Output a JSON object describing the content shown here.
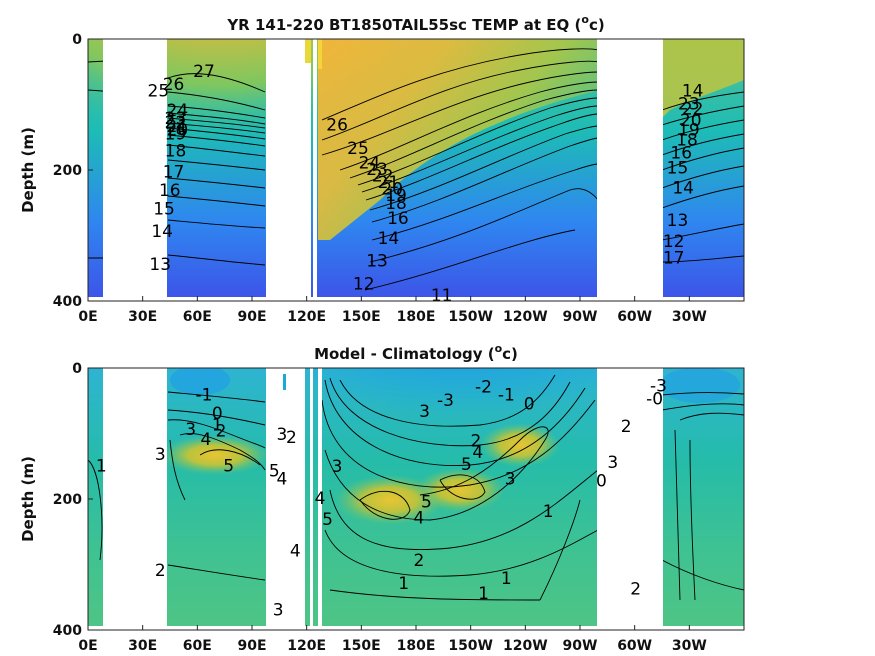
{
  "chart_data": [
    {
      "type": "heatmap",
      "title_main": "YR 141-220 BT1850TAIL55sc TEMP at EQ (",
      "title_unit": "o",
      "title_tail": "c)",
      "ylabel": "Depth (m)",
      "xlabel": "",
      "x_ticks": [
        "0E",
        "30E",
        "60E",
        "90E",
        "120E",
        "150E",
        "180E",
        "150W",
        "120W",
        "90W",
        "60W",
        "30W"
      ],
      "y_ticks": [
        "0",
        "200",
        "400"
      ],
      "xlim": [
        0,
        345
      ],
      "ylim": [
        400,
        0
      ],
      "contour_labels": [
        {
          "text": "27",
          "x": 61,
          "y": 50
        },
        {
          "text": "26",
          "x": 45,
          "y": 70
        },
        {
          "text": "25",
          "x": 37,
          "y": 80
        },
        {
          "text": "24",
          "x": 47,
          "y": 110
        },
        {
          "text": "23",
          "x": 46,
          "y": 122
        },
        {
          "text": "22",
          "x": 46,
          "y": 128
        },
        {
          "text": "21",
          "x": 47,
          "y": 134
        },
        {
          "text": "20",
          "x": 47,
          "y": 140
        },
        {
          "text": "19",
          "x": 46,
          "y": 146
        },
        {
          "text": "18",
          "x": 46,
          "y": 172
        },
        {
          "text": "17",
          "x": 45,
          "y": 204
        },
        {
          "text": "16",
          "x": 43,
          "y": 232
        },
        {
          "text": "15",
          "x": 40,
          "y": 260
        },
        {
          "text": "14",
          "x": 39,
          "y": 295
        },
        {
          "text": "13",
          "x": 38,
          "y": 345
        },
        {
          "text": "26",
          "x": 131,
          "y": 132
        },
        {
          "text": "25",
          "x": 142,
          "y": 168
        },
        {
          "text": "24",
          "x": 148,
          "y": 190
        },
        {
          "text": "23",
          "x": 152,
          "y": 200
        },
        {
          "text": "22",
          "x": 155,
          "y": 210
        },
        {
          "text": "21",
          "x": 158,
          "y": 220
        },
        {
          "text": "20",
          "x": 160,
          "y": 230
        },
        {
          "text": "19",
          "x": 162,
          "y": 240
        },
        {
          "text": "18",
          "x": 162,
          "y": 252
        },
        {
          "text": "16",
          "x": 163,
          "y": 275
        },
        {
          "text": "14",
          "x": 158,
          "y": 305
        },
        {
          "text": "13",
          "x": 152,
          "y": 340
        },
        {
          "text": "12",
          "x": 145,
          "y": 375
        },
        {
          "text": "11",
          "x": 186,
          "y": 392
        },
        {
          "text": "14",
          "x": 318,
          "y": 80
        },
        {
          "text": "23",
          "x": 316,
          "y": 100
        },
        {
          "text": "22",
          "x": 318,
          "y": 108
        },
        {
          "text": "20",
          "x": 317,
          "y": 125
        },
        {
          "text": "19",
          "x": 316,
          "y": 140
        },
        {
          "text": "18",
          "x": 315,
          "y": 155
        },
        {
          "text": "16",
          "x": 312,
          "y": 175
        },
        {
          "text": "15",
          "x": 310,
          "y": 198
        },
        {
          "text": "14",
          "x": 313,
          "y": 228
        },
        {
          "text": "13",
          "x": 310,
          "y": 278
        },
        {
          "text": "12",
          "x": 308,
          "y": 310
        },
        {
          "text": "17",
          "x": 308,
          "y": 335
        }
      ]
    },
    {
      "type": "heatmap",
      "title_main": "Model - Climatology (",
      "title_unit": "o",
      "title_tail": "c)",
      "ylabel": "Depth (m)",
      "xlabel": "",
      "x_ticks": [
        "0E",
        "30E",
        "60E",
        "90E",
        "120E",
        "150E",
        "180E",
        "150W",
        "120W",
        "90W",
        "60W",
        "30W"
      ],
      "y_ticks": [
        "0",
        "200",
        "400"
      ],
      "xlim": [
        0,
        345
      ],
      "ylim": [
        400,
        0
      ],
      "contour_labels": [
        {
          "text": "1",
          "x": 7,
          "y": 150
        },
        {
          "text": "-1",
          "x": 61,
          "y": 42
        },
        {
          "text": "0",
          "x": 68,
          "y": 70
        },
        {
          "text": "1",
          "x": 68,
          "y": 88
        },
        {
          "text": "2",
          "x": 70,
          "y": 97
        },
        {
          "text": "3",
          "x": 54,
          "y": 95
        },
        {
          "text": "4",
          "x": 62,
          "y": 110
        },
        {
          "text": "3",
          "x": 38,
          "y": 133
        },
        {
          "text": "5",
          "x": 74,
          "y": 150
        },
        {
          "text": "2",
          "x": 38,
          "y": 310
        },
        {
          "text": "3",
          "x": 102,
          "y": 102
        },
        {
          "text": "2",
          "x": 107,
          "y": 107
        },
        {
          "text": "5",
          "x": 98,
          "y": 158
        },
        {
          "text": "4",
          "x": 102,
          "y": 170
        },
        {
          "text": "3",
          "x": 100,
          "y": 370
        },
        {
          "text": "4",
          "x": 109,
          "y": 280
        },
        {
          "text": "4",
          "x": 122,
          "y": 200
        },
        {
          "text": "3",
          "x": 131,
          "y": 151
        },
        {
          "text": "5",
          "x": 126,
          "y": 232
        },
        {
          "text": "5",
          "x": 178,
          "y": 205
        },
        {
          "text": "4",
          "x": 174,
          "y": 230
        },
        {
          "text": "3",
          "x": 177,
          "y": 67
        },
        {
          "text": "2",
          "x": 174,
          "y": 295
        },
        {
          "text": "1",
          "x": 166,
          "y": 330
        },
        {
          "text": "-3",
          "x": 188,
          "y": 50
        },
        {
          "text": "-2",
          "x": 208,
          "y": 30
        },
        {
          "text": "-1",
          "x": 220,
          "y": 42
        },
        {
          "text": "0",
          "x": 232,
          "y": 56
        },
        {
          "text": "2",
          "x": 204,
          "y": 112
        },
        {
          "text": "4",
          "x": 205,
          "y": 130
        },
        {
          "text": "5",
          "x": 199,
          "y": 148
        },
        {
          "text": "3",
          "x": 222,
          "y": 170
        },
        {
          "text": "1",
          "x": 220,
          "y": 322
        },
        {
          "text": "1",
          "x": 242,
          "y": 220
        },
        {
          "text": "1",
          "x": 208,
          "y": 345
        },
        {
          "text": "-3",
          "x": 300,
          "y": 28
        },
        {
          "text": "-0",
          "x": 298,
          "y": 48
        },
        {
          "text": "2",
          "x": 283,
          "y": 90
        },
        {
          "text": "3",
          "x": 276,
          "y": 145
        },
        {
          "text": "0",
          "x": 270,
          "y": 173
        },
        {
          "text": "2",
          "x": 288,
          "y": 338
        }
      ]
    }
  ],
  "fill_colors": {
    "missing": "#ffffff",
    "colormap": [
      "#3d4fe8",
      "#2f86f0",
      "#1aaad8",
      "#1dbcb6",
      "#4cc585",
      "#8fc94f",
      "#c9c03a",
      "#f0b53a",
      "#f8d22c"
    ]
  }
}
